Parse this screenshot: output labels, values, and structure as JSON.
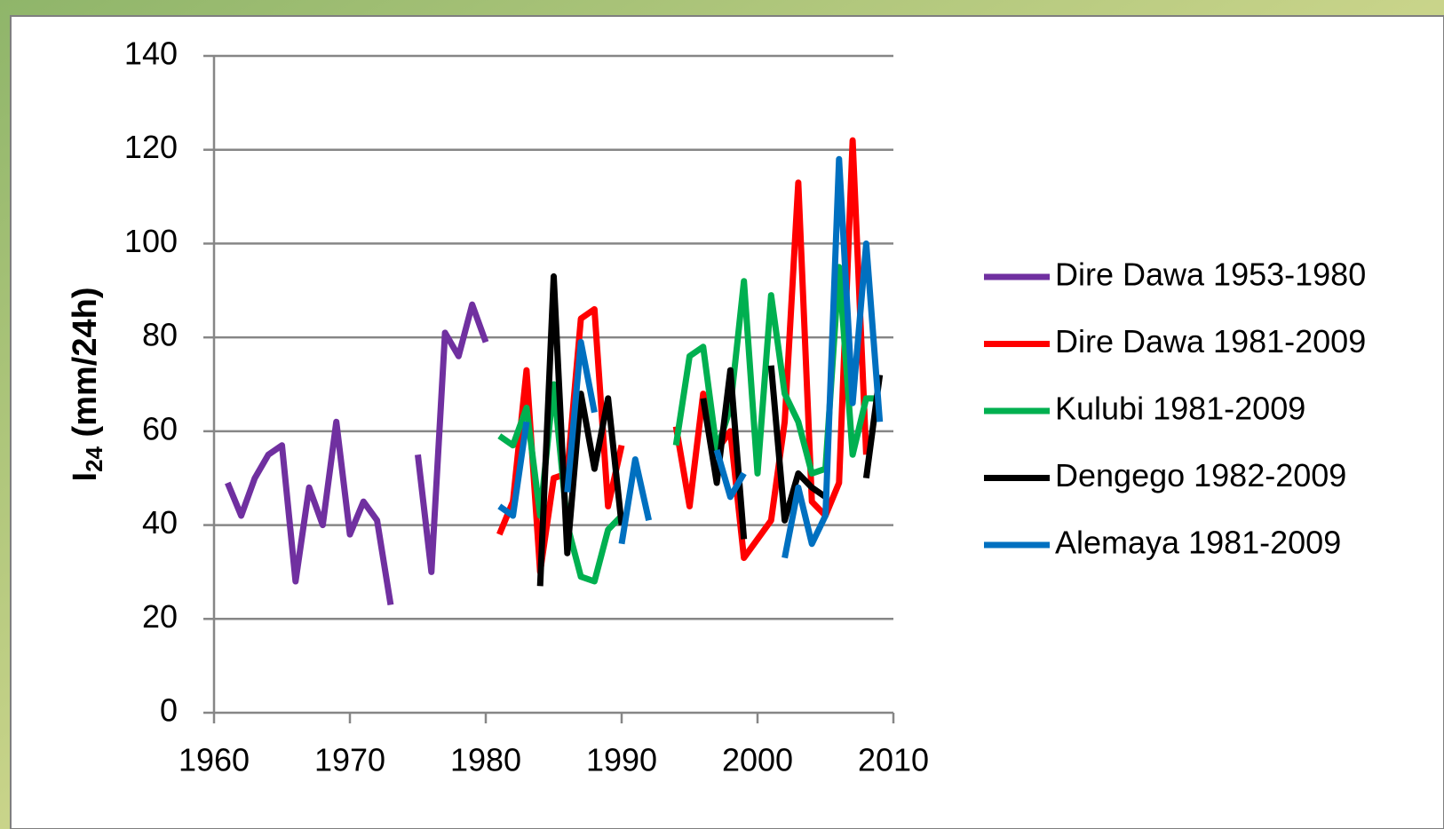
{
  "chart_data": {
    "type": "line",
    "y_label": [
      "I",
      "24",
      " (mm/24h)"
    ],
    "x": [
      1961,
      1962,
      1963,
      1964,
      1965,
      1966,
      1967,
      1968,
      1969,
      1970,
      1971,
      1972,
      1973,
      1974,
      1975,
      1976,
      1977,
      1978,
      1979,
      1980,
      1981,
      1982,
      1983,
      1984,
      1985,
      1986,
      1987,
      1988,
      1989,
      1990,
      1991,
      1992,
      1993,
      1994,
      1995,
      1996,
      1997,
      1998,
      1999,
      2000,
      2001,
      2002,
      2003,
      2004,
      2005,
      2006,
      2007,
      2008,
      2009
    ],
    "series": [
      {
        "name": "Dire Dawa 1953-1980",
        "color": "#7030a0",
        "values": [
          49,
          42,
          50,
          55,
          57,
          28,
          48,
          40,
          62,
          38,
          45,
          41,
          23,
          null,
          55,
          30,
          81,
          76,
          87,
          79,
          null,
          null,
          null,
          null,
          null,
          null,
          null,
          null,
          null,
          null,
          null,
          null,
          null,
          null,
          null,
          null,
          null,
          null,
          null,
          null,
          null,
          null,
          null,
          null,
          null,
          null,
          null,
          null,
          null
        ]
      },
      {
        "name": "Dire Dawa 1981-2009",
        "color": "#ff0000",
        "values": [
          null,
          null,
          null,
          null,
          null,
          null,
          null,
          null,
          null,
          null,
          null,
          null,
          null,
          null,
          null,
          null,
          null,
          null,
          null,
          null,
          38,
          45,
          73,
          30,
          50,
          51,
          84,
          86,
          44,
          57,
          null,
          null,
          null,
          61,
          44,
          68,
          56,
          60,
          33,
          37,
          41,
          62,
          113,
          45,
          42,
          49,
          122,
          55,
          null
        ]
      },
      {
        "name": "Kulubi 1981-2009",
        "color": "#00b050",
        "values": [
          null,
          null,
          null,
          null,
          null,
          null,
          null,
          null,
          null,
          null,
          null,
          null,
          null,
          null,
          null,
          null,
          null,
          null,
          null,
          null,
          59,
          57,
          65,
          42,
          70,
          40,
          29,
          28,
          39,
          42,
          null,
          null,
          null,
          57,
          76,
          78,
          56,
          65,
          92,
          51,
          89,
          68,
          62,
          51,
          52,
          95,
          55,
          67,
          67
        ]
      },
      {
        "name": "Dengego 1982-2009",
        "color": "#000000",
        "values": [
          null,
          null,
          null,
          null,
          null,
          null,
          null,
          null,
          null,
          null,
          null,
          null,
          null,
          null,
          null,
          null,
          null,
          null,
          null,
          null,
          null,
          null,
          null,
          27,
          93,
          34,
          68,
          52,
          67,
          40,
          null,
          null,
          null,
          null,
          null,
          67,
          49,
          73,
          37,
          null,
          74,
          41,
          51,
          48,
          46,
          null,
          null,
          50,
          72
        ]
      },
      {
        "name": "Alemaya 1981-2009",
        "color": "#0070c0",
        "values": [
          null,
          null,
          null,
          null,
          null,
          null,
          null,
          null,
          null,
          null,
          null,
          null,
          null,
          null,
          null,
          null,
          null,
          null,
          null,
          null,
          44,
          42,
          62,
          null,
          null,
          47,
          79,
          64,
          null,
          36,
          54,
          41,
          null,
          null,
          null,
          null,
          56,
          46,
          51,
          null,
          null,
          33,
          48,
          36,
          42,
          118,
          66,
          100,
          62
        ]
      }
    ],
    "xlim": [
      1960,
      2010
    ],
    "xticks": [
      1960,
      1970,
      1980,
      1990,
      2000,
      2010
    ],
    "ylim": [
      0,
      140
    ],
    "yticks": [
      0,
      20,
      40,
      60,
      80,
      100,
      120,
      140
    ],
    "grid": true,
    "legend": "right"
  }
}
